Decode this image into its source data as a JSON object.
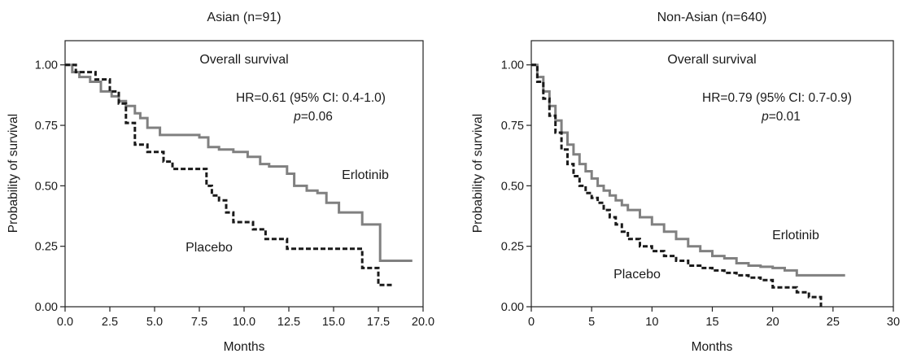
{
  "chart_data": [
    {
      "type": "line",
      "title": "Asian (n=91)",
      "xlabel": "Months",
      "ylabel": "Probability of survival",
      "xlim": [
        0,
        20
      ],
      "ylim": [
        0,
        1.1
      ],
      "x_ticks": [
        "0.0",
        "2.5",
        "5.0",
        "7.5",
        "10.0",
        "12.5",
        "15.0",
        "17.5",
        "20.0"
      ],
      "x_tick_values": [
        0,
        2.5,
        5,
        7.5,
        10,
        12.5,
        15,
        17.5,
        20
      ],
      "y_ticks": [
        "0.00",
        "0.25",
        "0.50",
        "0.75",
        "1.00"
      ],
      "y_tick_values": [
        0,
        0.25,
        0.5,
        0.75,
        1.0
      ],
      "annotation_title": "Overall survival",
      "hr_text": "HR=0.61 (95% CI: 0.4-1.0)",
      "p_label": "p",
      "p_value": "=0.06",
      "series": [
        {
          "name": "Erlotinib",
          "style": "solid",
          "color": "#808080",
          "x": [
            0,
            0.4,
            0.8,
            1.4,
            2.0,
            2.6,
            3.0,
            3.4,
            3.9,
            4.2,
            4.6,
            5.3,
            7.5,
            8.0,
            8.6,
            9.4,
            10.2,
            10.9,
            11.4,
            12.4,
            12.8,
            13.5,
            14.1,
            14.6,
            15.3,
            16.6,
            17.6,
            19.4
          ],
          "y": [
            1.0,
            0.97,
            0.95,
            0.93,
            0.89,
            0.87,
            0.85,
            0.83,
            0.8,
            0.78,
            0.74,
            0.71,
            0.7,
            0.66,
            0.65,
            0.64,
            0.62,
            0.59,
            0.58,
            0.55,
            0.5,
            0.48,
            0.47,
            0.43,
            0.39,
            0.34,
            0.19,
            0.19
          ]
        },
        {
          "name": "Placebo",
          "style": "dashed",
          "color": "#1a1a1a",
          "x": [
            0,
            0.6,
            1.7,
            2.5,
            3.0,
            3.4,
            3.9,
            4.6,
            5.5,
            6.0,
            7.9,
            8.2,
            8.6,
            9.0,
            9.4,
            10.5,
            11.2,
            12.4,
            16.3,
            16.6,
            17.5,
            18.3
          ],
          "y": [
            1.0,
            0.97,
            0.94,
            0.89,
            0.84,
            0.76,
            0.67,
            0.64,
            0.6,
            0.57,
            0.5,
            0.46,
            0.44,
            0.39,
            0.35,
            0.32,
            0.28,
            0.24,
            0.24,
            0.16,
            0.09,
            0.09
          ]
        }
      ]
    },
    {
      "type": "line",
      "title": "Non-Asian (n=640)",
      "xlabel": "Months",
      "ylabel": "Probability of survival",
      "xlim": [
        0,
        30
      ],
      "ylim": [
        0,
        1.1
      ],
      "x_ticks": [
        "0",
        "5",
        "10",
        "15",
        "20",
        "25",
        "30"
      ],
      "x_tick_values": [
        0,
        5,
        10,
        15,
        20,
        25,
        30
      ],
      "y_ticks": [
        "0.00",
        "0.25",
        "0.50",
        "0.75",
        "1.00"
      ],
      "y_tick_values": [
        0,
        0.25,
        0.5,
        0.75,
        1.0
      ],
      "annotation_title": "Overall survival",
      "hr_text": "HR=0.79 (95% CI: 0.7-0.9)",
      "p_label": "p",
      "p_value": "=0.01",
      "series": [
        {
          "name": "Erlotinib",
          "style": "solid",
          "color": "#808080",
          "x": [
            0,
            0.5,
            1.0,
            1.5,
            2.0,
            2.5,
            3.0,
            3.5,
            4.0,
            4.5,
            5.0,
            5.5,
            6.0,
            6.5,
            7.0,
            7.5,
            8.0,
            9.0,
            10.0,
            11.0,
            12.0,
            13.0,
            14.0,
            15.0,
            16.0,
            17.0,
            18.0,
            19.0,
            20.0,
            21.0,
            22.0,
            24.0,
            26.0
          ],
          "y": [
            1.0,
            0.95,
            0.89,
            0.83,
            0.77,
            0.72,
            0.67,
            0.63,
            0.59,
            0.56,
            0.53,
            0.5,
            0.48,
            0.46,
            0.44,
            0.42,
            0.4,
            0.37,
            0.34,
            0.31,
            0.28,
            0.25,
            0.23,
            0.21,
            0.2,
            0.18,
            0.17,
            0.165,
            0.16,
            0.15,
            0.13,
            0.13,
            0.13
          ]
        },
        {
          "name": "Placebo",
          "style": "dashed",
          "color": "#1a1a1a",
          "x": [
            0,
            0.5,
            1.0,
            1.5,
            2.0,
            2.5,
            3.0,
            3.5,
            4.0,
            4.5,
            5.0,
            5.5,
            6.0,
            6.5,
            7.0,
            7.5,
            8.0,
            9.0,
            10.0,
            11.0,
            12.0,
            13.0,
            14.0,
            15.0,
            16.0,
            17.0,
            18.0,
            19.0,
            20.0,
            21.0,
            22.0,
            23.0,
            24.0
          ],
          "y": [
            1.0,
            0.93,
            0.86,
            0.79,
            0.72,
            0.65,
            0.59,
            0.54,
            0.5,
            0.47,
            0.45,
            0.43,
            0.4,
            0.37,
            0.34,
            0.31,
            0.28,
            0.25,
            0.23,
            0.21,
            0.19,
            0.17,
            0.16,
            0.15,
            0.14,
            0.13,
            0.12,
            0.11,
            0.08,
            0.08,
            0.06,
            0.04,
            0.0
          ]
        }
      ]
    }
  ]
}
